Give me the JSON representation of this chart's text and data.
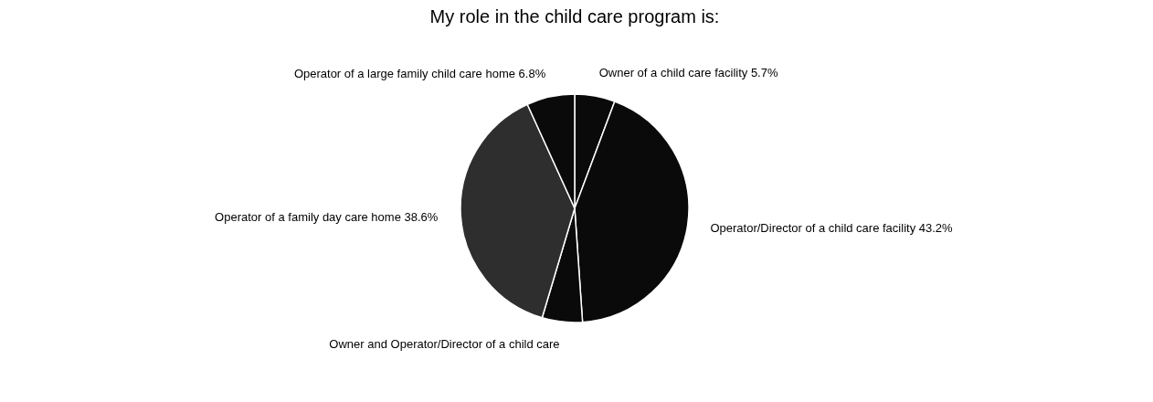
{
  "chart_data": {
    "type": "pie",
    "title": "My role in the child care program is:",
    "categories": [
      "Owner of a child care facility",
      "Operator/Director of a child care facility",
      "Owner and Operator/Director of a child care",
      "Operator of a family day care home",
      "Operator of a large family child care home"
    ],
    "values": [
      5.7,
      43.2,
      5.7,
      38.6,
      6.8
    ],
    "value_labels": [
      "5.7%",
      "43.2%",
      null,
      "38.6%",
      "6.8%"
    ],
    "colors": [
      "#0a0a0a",
      "#0a0a0a",
      "#0a0a0a",
      "#2e2e2e",
      "#0a0a0a"
    ],
    "legend": false
  }
}
